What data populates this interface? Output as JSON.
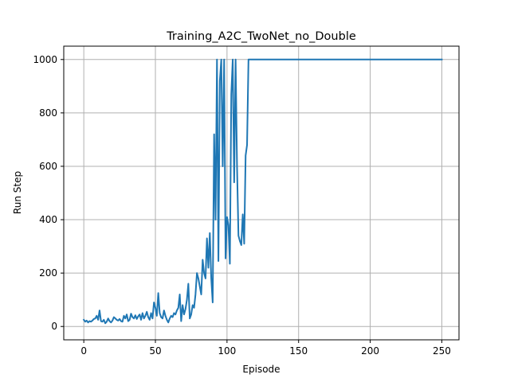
{
  "chart_data": {
    "type": "line",
    "title": "Training_A2C_TwoNet_no_Double",
    "xlabel": "Episode",
    "ylabel": "Run Step",
    "xlim": [
      -14,
      262
    ],
    "ylim": [
      -50,
      1050
    ],
    "xticks": [
      0,
      50,
      100,
      150,
      200,
      250
    ],
    "yticks": [
      0,
      200,
      400,
      600,
      800,
      1000
    ],
    "grid": true,
    "line_color": "#1f77b4",
    "grid_color": "#b0b0b0",
    "series": [
      {
        "x": [
          0,
          1,
          2,
          3,
          4,
          5,
          6,
          7,
          8,
          9,
          10,
          11,
          12,
          13,
          14,
          15,
          16,
          17,
          18,
          19,
          20,
          21,
          22,
          23,
          24,
          25,
          26,
          27,
          28,
          29,
          30,
          31,
          32,
          33,
          34,
          35,
          36,
          37,
          38,
          39,
          40,
          41,
          42,
          43,
          44,
          45,
          46,
          47,
          48,
          49,
          50,
          51,
          52,
          53,
          54,
          55,
          56,
          57,
          58,
          59,
          60,
          61,
          62,
          63,
          64,
          65,
          66,
          67,
          68,
          69,
          70,
          71,
          72,
          73,
          74,
          75,
          76,
          77,
          78,
          79,
          80,
          81,
          82,
          83,
          84,
          85,
          86,
          87,
          88,
          89,
          90,
          91,
          92,
          93,
          94,
          95,
          96,
          97,
          98,
          99,
          100,
          101,
          102,
          103,
          104,
          105,
          106,
          107,
          108,
          109,
          110,
          111,
          112,
          113,
          114,
          115,
          116,
          117,
          118,
          119,
          250
        ],
        "y": [
          25,
          18,
          22,
          15,
          20,
          18,
          22,
          28,
          30,
          40,
          25,
          60,
          20,
          18,
          25,
          12,
          18,
          30,
          20,
          15,
          22,
          35,
          30,
          25,
          22,
          28,
          20,
          18,
          40,
          30,
          45,
          20,
          25,
          48,
          35,
          30,
          42,
          28,
          38,
          45,
          25,
          50,
          30,
          40,
          55,
          35,
          25,
          50,
          30,
          90,
          70,
          40,
          125,
          50,
          35,
          30,
          60,
          40,
          25,
          15,
          30,
          40,
          35,
          50,
          45,
          60,
          70,
          120,
          20,
          80,
          45,
          65,
          100,
          160,
          30,
          45,
          80,
          70,
          120,
          200,
          180,
          150,
          120,
          250,
          200,
          180,
          330,
          220,
          350,
          180,
          90,
          720,
          400,
          1000,
          245,
          920,
          1000,
          600,
          1000,
          255,
          410,
          380,
          235,
          870,
          1000,
          540,
          1000,
          600,
          340,
          320,
          305,
          420,
          310,
          640,
          680,
          1000,
          1000,
          1000,
          1000,
          1000,
          1000
        ]
      }
    ]
  }
}
